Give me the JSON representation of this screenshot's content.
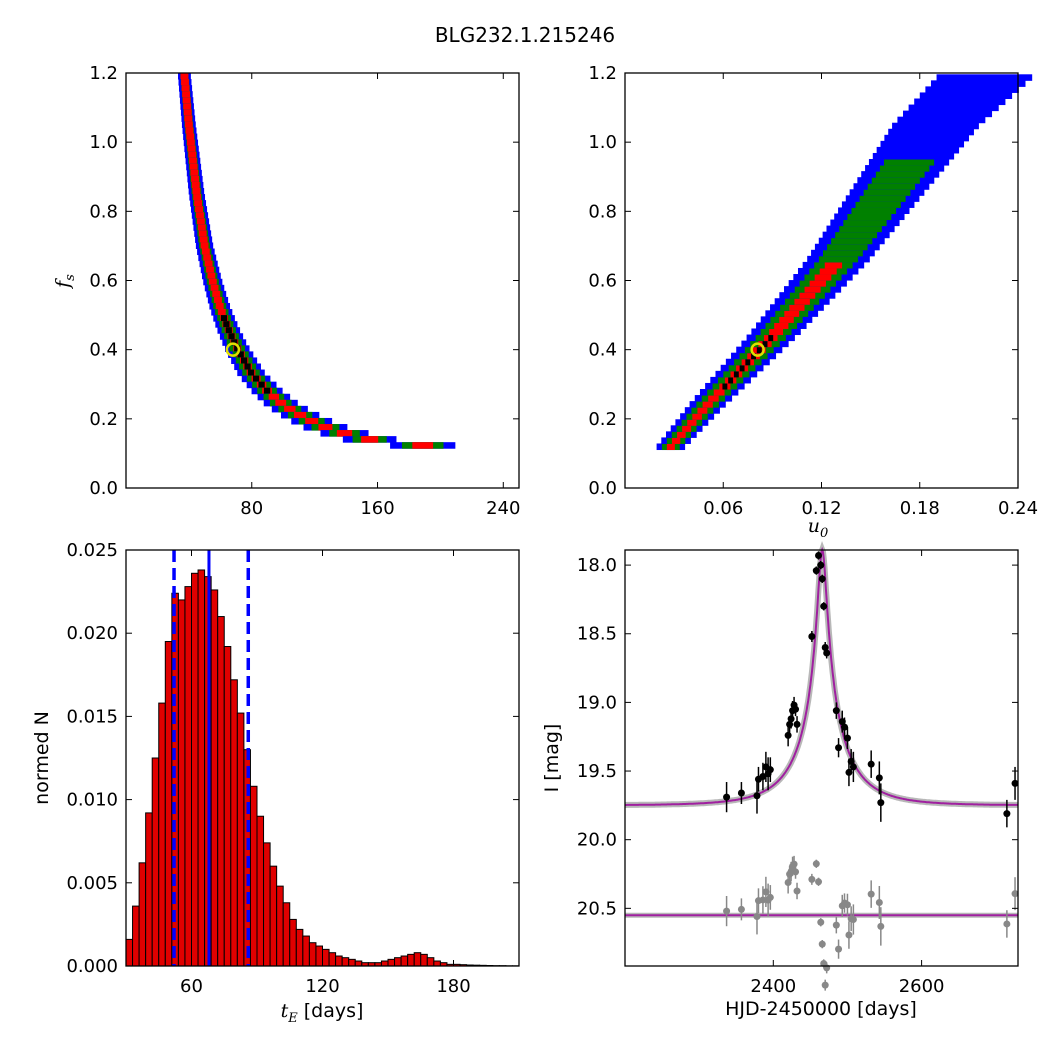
{
  "figure": {
    "title": "BLG232.1.215246"
  },
  "colors": {
    "hist_blue": "#0000ff",
    "hist_green": "#008000",
    "hist_red": "#ff0000",
    "hist_black": "#000000",
    "bar_fill": "#e00000",
    "model_curve": "#a020a0",
    "residual_points": "#888888",
    "best_fit_marker": "#e0e000"
  },
  "panels": {
    "top_left": {
      "ylabel_main": "f",
      "ylabel_sub": "s",
      "xticks": [
        "80",
        "160",
        "240"
      ],
      "yticks": [
        "0.0",
        "0.2",
        "0.4",
        "0.6",
        "0.8",
        "1.0",
        "1.2"
      ]
    },
    "top_right": {
      "xlabel_main": "u",
      "xlabel_sub": "0",
      "xticks": [
        "0.06",
        "0.12",
        "0.18",
        "0.24"
      ],
      "yticks": [
        "0.0",
        "0.2",
        "0.4",
        "0.6",
        "0.8",
        "1.0",
        "1.2"
      ]
    },
    "bottom_left": {
      "ylabel": "normed N",
      "xlabel_main": "t",
      "xlabel_sub": "E",
      "xlabel_rest": " [days]",
      "xticks": [
        "60",
        "120",
        "180"
      ],
      "yticks": [
        "0.000",
        "0.005",
        "0.010",
        "0.015",
        "0.020",
        "0.025"
      ]
    },
    "bottom_right": {
      "ylabel": "I [mag]",
      "xlabel": "HJD-2450000 [days]",
      "xticks": [
        "2400",
        "2600"
      ],
      "yticks": [
        "18.0",
        "18.5",
        "19.0",
        "19.5",
        "20.0",
        "20.5"
      ]
    }
  },
  "chart_data": [
    {
      "type": "heatmap",
      "title": "",
      "xlabel": "",
      "ylabel": "f_s",
      "xlim": [
        0,
        250
      ],
      "ylim": [
        0.0,
        1.2
      ],
      "curve_fs_vs_tE": [
        [
          37,
          1.2
        ],
        [
          40,
          1.05
        ],
        [
          45,
          0.85
        ],
        [
          50,
          0.7
        ],
        [
          55,
          0.6
        ],
        [
          60,
          0.52
        ],
        [
          65,
          0.46
        ],
        [
          70,
          0.41
        ],
        [
          80,
          0.33
        ],
        [
          90,
          0.28
        ],
        [
          100,
          0.24
        ],
        [
          115,
          0.2
        ],
        [
          130,
          0.17
        ],
        [
          150,
          0.145
        ],
        [
          170,
          0.13
        ],
        [
          200,
          0.12
        ]
      ],
      "levels": [
        "blue",
        "green",
        "red",
        "black"
      ],
      "best_fit": {
        "tE": 68,
        "fs": 0.4
      }
    },
    {
      "type": "heatmap",
      "title": "",
      "xlabel": "u_0",
      "ylabel": "",
      "xlim": [
        0.0,
        0.24
      ],
      "ylim": [
        0.0,
        1.2
      ],
      "curve_fs_vs_u0": [
        [
          0.028,
          0.12
        ],
        [
          0.05,
          0.24
        ],
        [
          0.07,
          0.34
        ],
        [
          0.09,
          0.44
        ],
        [
          0.11,
          0.55
        ],
        [
          0.13,
          0.66
        ],
        [
          0.15,
          0.79
        ],
        [
          0.17,
          0.92
        ],
        [
          0.19,
          1.05
        ],
        [
          0.22,
          1.19
        ]
      ],
      "levels": [
        "blue",
        "green",
        "red",
        "black"
      ],
      "best_fit": {
        "u0": 0.081,
        "fs": 0.4
      }
    },
    {
      "type": "bar",
      "title": "",
      "xlabel": "t_E [days]",
      "ylabel": "normed N",
      "xlim": [
        30,
        210
      ],
      "ylim": [
        0.0,
        0.025
      ],
      "bin_start": 30,
      "bin_width": 3,
      "values": [
        0.0016,
        0.0036,
        0.0062,
        0.0092,
        0.0125,
        0.0158,
        0.0195,
        0.0224,
        0.022,
        0.0228,
        0.0236,
        0.0238,
        0.0234,
        0.0226,
        0.021,
        0.0192,
        0.0172,
        0.0152,
        0.013,
        0.0108,
        0.009,
        0.0074,
        0.006,
        0.0048,
        0.0038,
        0.0028,
        0.0022,
        0.0018,
        0.0014,
        0.0012,
        0.001,
        0.0008,
        0.0006,
        0.0005,
        0.0004,
        0.0003,
        0.0002,
        0.0002,
        0.0002,
        0.0003,
        0.0004,
        0.0005,
        0.0006,
        0.0007,
        0.0008,
        0.0007,
        0.0005,
        0.0003,
        0.0002,
        0.0001,
        0.0001,
        8e-05,
        6e-05,
        5e-05,
        4e-05,
        3e-05,
        2e-05,
        2e-05,
        1e-05,
        1e-05
      ],
      "median": 68,
      "lower": 52,
      "upper": 86
    },
    {
      "type": "scatter",
      "title": "",
      "xlabel": "HJD-2450000 [days]",
      "ylabel": "I [mag]",
      "xlim": [
        2200,
        2730
      ],
      "ylim": [
        20.92,
        17.89
      ],
      "ylim_note": "magnitude axis inverted",
      "model": {
        "t0": 2466,
        "tE": 68,
        "u0": 0.081,
        "fs": 0.4,
        "I_base": 19.75
      },
      "residual_offset": 20.55,
      "points": [
        {
          "x": 2337,
          "y": 19.69,
          "err": 0.11
        },
        {
          "x": 2357,
          "y": 19.66,
          "err": 0.08
        },
        {
          "x": 2378,
          "y": 19.68,
          "err": 0.13
        },
        {
          "x": 2380,
          "y": 19.56,
          "err": 0.09
        },
        {
          "x": 2386,
          "y": 19.54,
          "err": 0.1
        },
        {
          "x": 2390,
          "y": 19.47,
          "err": 0.11
        },
        {
          "x": 2393,
          "y": 19.52,
          "err": 0.12
        },
        {
          "x": 2396,
          "y": 19.49,
          "err": 0.09
        },
        {
          "x": 2420,
          "y": 19.24,
          "err": 0.08
        },
        {
          "x": 2422,
          "y": 19.16,
          "err": 0.06
        },
        {
          "x": 2424,
          "y": 19.12,
          "err": 0.07
        },
        {
          "x": 2426,
          "y": 19.06,
          "err": 0.07
        },
        {
          "x": 2428,
          "y": 19.02,
          "err": 0.06
        },
        {
          "x": 2430,
          "y": 19.05,
          "err": 0.05
        },
        {
          "x": 2432,
          "y": 19.16,
          "err": 0.06
        },
        {
          "x": 2452,
          "y": 18.52,
          "err": 0.04
        },
        {
          "x": 2458,
          "y": 18.04,
          "err": 0.03
        },
        {
          "x": 2461,
          "y": 17.93,
          "err": 0.03
        },
        {
          "x": 2464,
          "y": 18.0,
          "err": 0.03
        },
        {
          "x": 2466,
          "y": 18.1,
          "err": 0.03
        },
        {
          "x": 2468,
          "y": 18.3,
          "err": 0.03
        },
        {
          "x": 2470,
          "y": 18.6,
          "err": 0.04
        },
        {
          "x": 2472,
          "y": 18.64,
          "err": 0.04
        },
        {
          "x": 2485,
          "y": 19.06,
          "err": 0.06
        },
        {
          "x": 2488,
          "y": 19.33,
          "err": 0.07
        },
        {
          "x": 2493,
          "y": 19.14,
          "err": 0.08
        },
        {
          "x": 2496,
          "y": 19.18,
          "err": 0.07
        },
        {
          "x": 2500,
          "y": 19.26,
          "err": 0.08
        },
        {
          "x": 2502,
          "y": 19.51,
          "err": 0.1
        },
        {
          "x": 2505,
          "y": 19.43,
          "err": 0.09
        },
        {
          "x": 2508,
          "y": 19.47,
          "err": 0.11
        },
        {
          "x": 2532,
          "y": 19.45,
          "err": 0.1
        },
        {
          "x": 2543,
          "y": 19.55,
          "err": 0.12
        },
        {
          "x": 2545,
          "y": 19.73,
          "err": 0.14
        },
        {
          "x": 2715,
          "y": 19.81,
          "err": 0.1
        },
        {
          "x": 2726,
          "y": 19.59,
          "err": 0.12
        }
      ]
    }
  ]
}
